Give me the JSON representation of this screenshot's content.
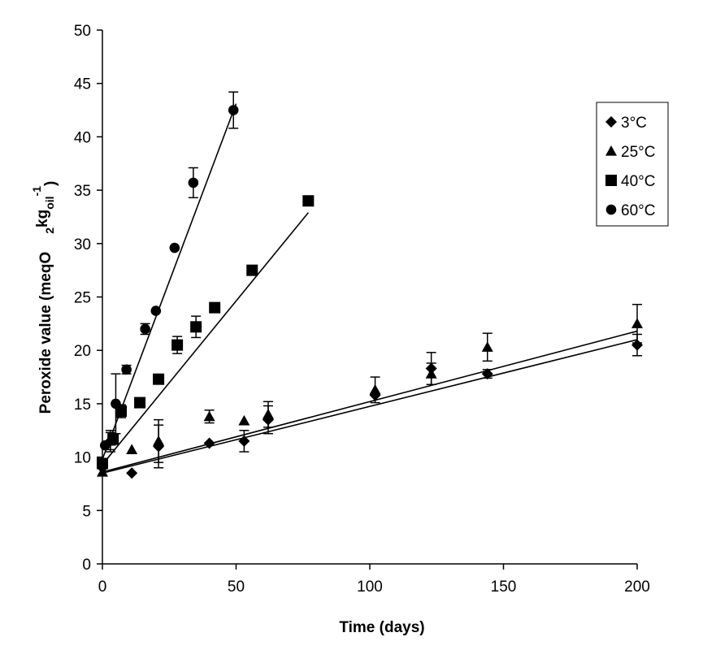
{
  "chart_data": {
    "type": "scatter",
    "title": "",
    "xlabel": "Time (days)",
    "ylabel_main": "Peroxide value (meqO",
    "ylabel_sub1": "2",
    "ylabel_mid": "kg",
    "ylabel_sub2": "oil",
    "ylabel_sup": "-1",
    "ylabel_end": ")",
    "xlim": [
      0,
      200
    ],
    "ylim": [
      0,
      50
    ],
    "xticks": [
      0,
      50,
      100,
      150,
      200
    ],
    "yticks": [
      0,
      5,
      10,
      15,
      20,
      25,
      30,
      35,
      40,
      45,
      50
    ],
    "grid": false,
    "legend_position": "top-right",
    "series": [
      {
        "name": "3°C",
        "marker": "diamond",
        "points": [
          [
            0,
            9.0
          ],
          [
            3,
            11.5
          ],
          [
            11,
            8.5
          ],
          [
            21,
            11.0
          ],
          [
            40,
            11.3
          ],
          [
            53,
            11.5
          ],
          [
            62,
            13.5
          ],
          [
            102,
            15.8
          ],
          [
            123,
            18.3
          ],
          [
            144,
            17.8
          ],
          [
            200,
            20.5
          ]
        ],
        "errors": [
          0,
          0.8,
          0,
          2.0,
          0,
          1.0,
          1.3,
          0,
          1.5,
          0.4,
          1.0
        ],
        "fit": [
          [
            0,
            8.5
          ],
          [
            200,
            21.0
          ]
        ]
      },
      {
        "name": "25°C",
        "marker": "triangle",
        "points": [
          [
            0,
            8.6
          ],
          [
            3,
            11.5
          ],
          [
            11,
            10.7
          ],
          [
            21,
            11.5
          ],
          [
            40,
            13.8
          ],
          [
            53,
            13.4
          ],
          [
            62,
            14.0
          ],
          [
            102,
            16.3
          ],
          [
            123,
            17.8
          ],
          [
            144,
            20.3
          ],
          [
            200,
            22.5
          ]
        ],
        "errors": [
          0,
          1.0,
          0,
          2.0,
          0.6,
          0,
          1.2,
          1.2,
          1.0,
          1.3,
          1.8
        ],
        "fit": [
          [
            0,
            8.6
          ],
          [
            200,
            21.8
          ]
        ]
      },
      {
        "name": "40°C",
        "marker": "square",
        "points": [
          [
            0,
            9.4
          ],
          [
            4,
            11.7
          ],
          [
            7,
            14.3
          ],
          [
            14,
            15.1
          ],
          [
            21,
            17.3
          ],
          [
            28,
            20.5
          ],
          [
            35,
            22.2
          ],
          [
            42,
            24.0
          ],
          [
            56,
            27.5
          ],
          [
            77,
            34.0
          ]
        ],
        "errors": [
          0,
          0.5,
          0.6,
          0,
          0,
          0.8,
          1.0,
          0,
          0,
          0
        ],
        "fit": [
          [
            0,
            9.3
          ],
          [
            77,
            32.9
          ]
        ]
      },
      {
        "name": "60°C",
        "marker": "circle",
        "points": [
          [
            1,
            11.1
          ],
          [
            5,
            15.0
          ],
          [
            9,
            18.2
          ],
          [
            16,
            22.0
          ],
          [
            20,
            23.7
          ],
          [
            27,
            29.6
          ],
          [
            34,
            35.7
          ],
          [
            49,
            42.5
          ]
        ],
        "errors": [
          0,
          2.8,
          0.4,
          0.5,
          0,
          0,
          1.4,
          1.7
        ],
        "fit": [
          [
            0,
            9.8
          ],
          [
            50,
            43.1
          ]
        ]
      }
    ]
  }
}
